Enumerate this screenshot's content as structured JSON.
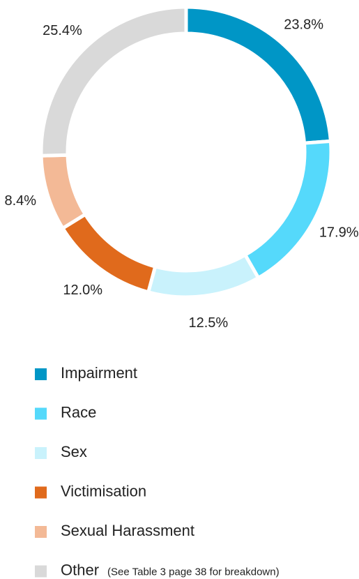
{
  "chart_data": {
    "type": "donut",
    "categories": [
      "Impairment",
      "Race",
      "Sex",
      "Victimisation",
      "Sexual Harassment",
      "Other"
    ],
    "values": [
      23.8,
      17.9,
      12.5,
      12.0,
      8.4,
      25.4
    ],
    "value_labels": [
      "23.8%",
      "17.9%",
      "12.5%",
      "12.0%",
      "8.4%",
      "25.4%"
    ],
    "colors": [
      "#0096c6",
      "#55d9fb",
      "#c9f2fc",
      "#e06a1c",
      "#f3b996",
      "#d9d9d9"
    ],
    "legend_note": "(See Table 3 page 38 for breakdown)"
  }
}
